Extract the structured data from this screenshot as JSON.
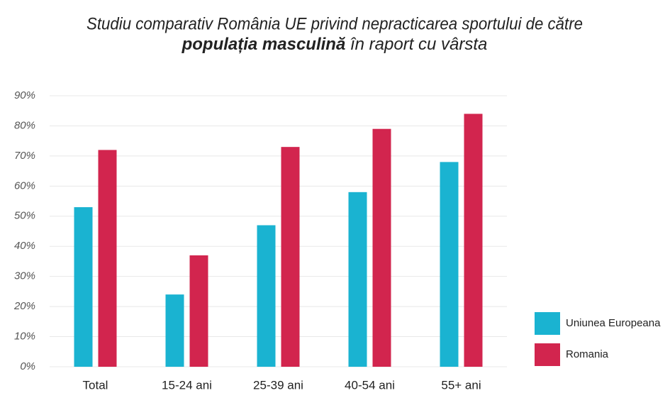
{
  "chart_data": {
    "type": "bar",
    "title": [
      "Studiu comparativ România UE privind nepracticarea sportului de către",
      "populația masculină",
      "în raport cu vârsta"
    ],
    "categories": [
      "Total",
      "15-24 ani",
      "25-39 ani",
      "40-54 ani",
      "55+ ani"
    ],
    "series": [
      {
        "name": "Uniunea Europeana",
        "color": "#1ab3d1",
        "values": [
          53,
          24,
          47,
          58,
          68
        ]
      },
      {
        "name": "Romania",
        "color": "#d2254e",
        "values": [
          72,
          37,
          73,
          79,
          84
        ]
      }
    ],
    "ylim": [
      0,
      90
    ],
    "yticks": [
      {
        "value": 0,
        "label": "0%"
      },
      {
        "value": 10,
        "label": "10%"
      },
      {
        "value": 20,
        "label": "20%"
      },
      {
        "value": 30,
        "label": "30%"
      },
      {
        "value": 40,
        "label": "40%"
      },
      {
        "value": 50,
        "label": "50%"
      },
      {
        "value": 60,
        "label": "60%"
      },
      {
        "value": 70,
        "label": "70%"
      },
      {
        "value": 80,
        "label": "80%"
      },
      {
        "value": 90,
        "label": "90%"
      }
    ],
    "grid": true,
    "legend": "right"
  }
}
